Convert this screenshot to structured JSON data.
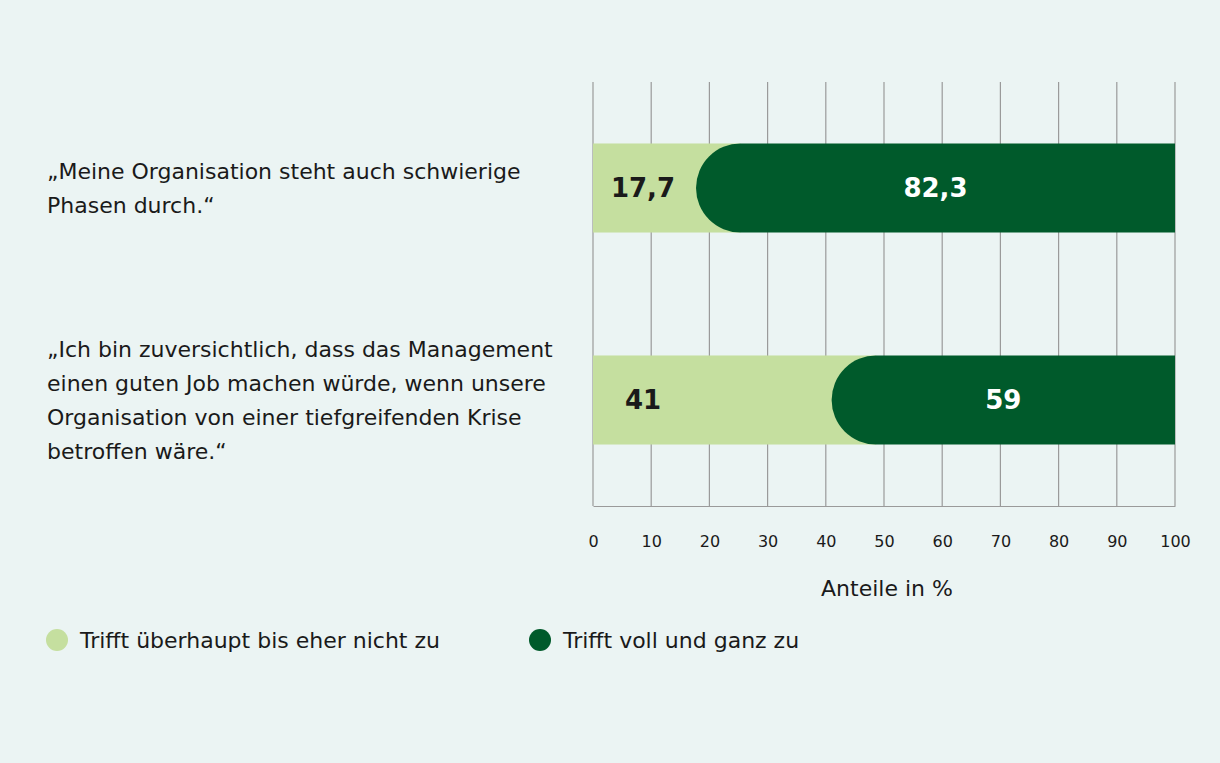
{
  "chart_data": {
    "type": "bar",
    "orientation": "horizontal",
    "stacked": true,
    "data_labels": true,
    "grid": true,
    "x_label": "Anteile in %",
    "categories": [
      "„Meine Organisation steht auch schwierige Phasen durch.“",
      "„Ich bin zuversichtlich, dass das Management einen guten Job machen würde, wenn unsere Organisation von einer tiefgreifenden Krise betroffen wäre.“"
    ],
    "series": [
      {
        "name": "Trifft überhaupt bis eher nicht zu",
        "color": "#c5df9f",
        "values": [
          17.7,
          41
        ],
        "value_labels": [
          "17,7",
          "41"
        ]
      },
      {
        "name": "Trifft voll und ganz zu",
        "color": "#005a2b",
        "values": [
          82.3,
          59
        ],
        "value_labels": [
          "82,3",
          "59"
        ]
      }
    ],
    "xlim": [
      0,
      100
    ],
    "xticks": [
      0,
      10,
      20,
      30,
      40,
      50,
      60,
      70,
      80,
      90,
      100
    ]
  }
}
